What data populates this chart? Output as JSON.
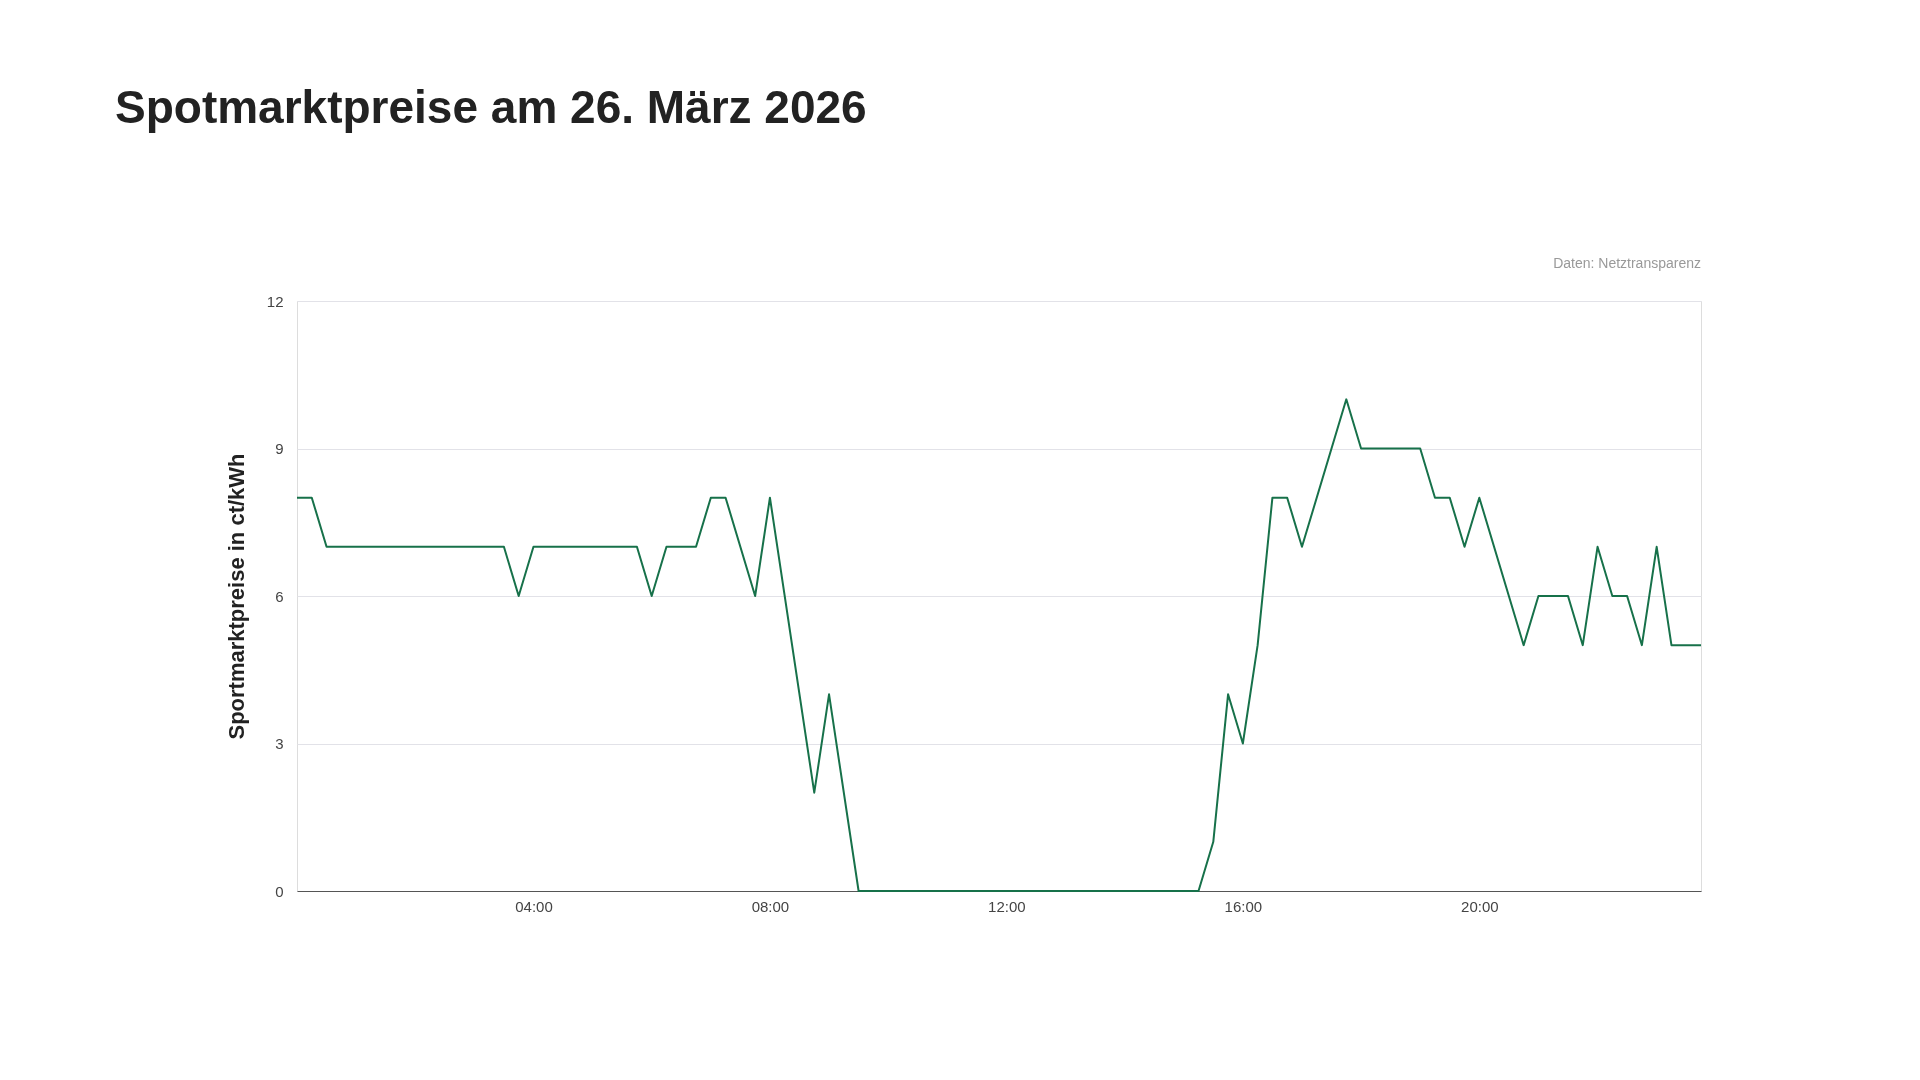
{
  "chart_data": {
    "type": "line",
    "title": "Spotmarktpreise am 26. März 2026",
    "ylabel": "Sportmarktpreise in ct/kWh",
    "annotations": [
      "Daten: Netztransparenz"
    ],
    "x": [
      0,
      0.25,
      0.5,
      3.5,
      3.75,
      4.0,
      5.75,
      6.0,
      6.25,
      6.75,
      7.0,
      7.25,
      7.75,
      8.0,
      8.75,
      9.0,
      9.5,
      15.25,
      15.5,
      15.75,
      16.0,
      16.25,
      16.5,
      16.75,
      17.0,
      17.75,
      18.0,
      19.0,
      19.25,
      19.5,
      19.75,
      20.0,
      20.75,
      21.0,
      21.5,
      21.75,
      22.0,
      22.25,
      22.5,
      22.75,
      23.0,
      23.25,
      23.75
    ],
    "series": [
      {
        "color": "#17714a",
        "values": [
          8,
          8,
          7,
          7,
          6,
          7,
          7,
          6,
          7,
          7,
          8,
          8,
          6,
          8,
          2,
          4,
          0,
          0,
          1,
          4,
          3,
          5,
          8,
          8,
          7,
          10,
          9,
          9,
          8,
          8,
          7,
          8,
          5,
          6,
          6,
          5,
          7,
          6,
          6,
          5,
          7,
          5,
          5
        ]
      }
    ],
    "xlim": [
      0,
      23.75
    ],
    "xticks": [
      {
        "value": 4,
        "label": "04:00"
      },
      {
        "value": 8,
        "label": "08:00"
      },
      {
        "value": 12,
        "label": "12:00"
      },
      {
        "value": 16,
        "label": "16:00"
      },
      {
        "value": 20,
        "label": "20:00"
      }
    ],
    "ylim": [
      0,
      12
    ],
    "yticks": [
      0,
      3,
      6,
      9,
      12
    ],
    "grid": "y",
    "marker": "none",
    "line_style": "solid",
    "legend": false
  }
}
